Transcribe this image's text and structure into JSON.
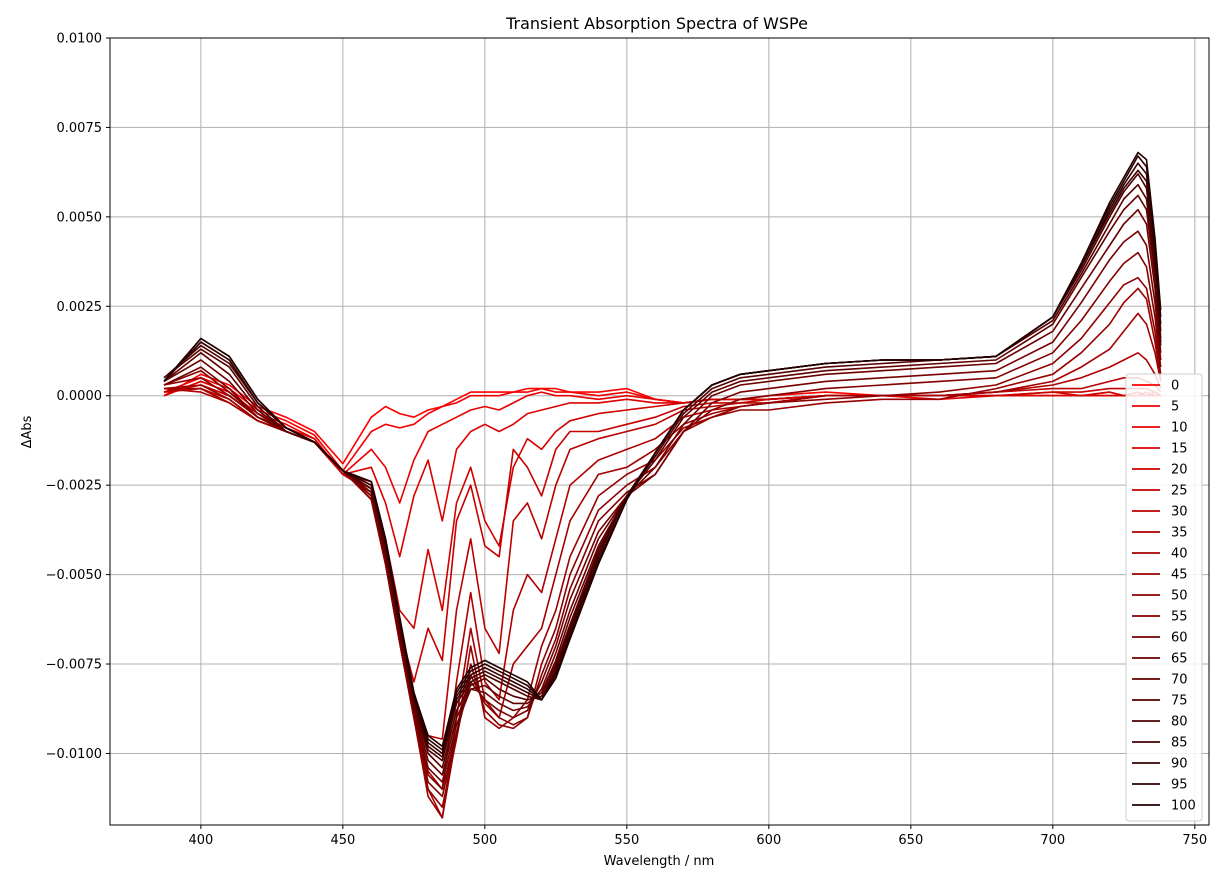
{
  "chart_data": {
    "type": "line",
    "title": "Transient Absorption Spectra of WSPe",
    "xlabel": "Wavelength / nm",
    "ylabel": "ΔAbs",
    "xlim": [
      368,
      755
    ],
    "ylim": [
      -0.012,
      0.01
    ],
    "xticks": [
      400,
      450,
      500,
      550,
      600,
      650,
      700,
      750
    ],
    "yticks": [
      -0.01,
      -0.0075,
      -0.005,
      -0.0025,
      0.0,
      0.0025,
      0.005,
      0.0075,
      0.01
    ],
    "ytick_labels": [
      "−0.0100",
      "−0.0075",
      "−0.0050",
      "−0.0025",
      "0.0000",
      "0.0025",
      "0.0050",
      "0.0075",
      "0.0100"
    ],
    "grid": true,
    "legend_position": "right",
    "x": [
      387,
      400,
      410,
      420,
      430,
      440,
      450,
      460,
      465,
      470,
      475,
      480,
      485,
      490,
      495,
      500,
      505,
      510,
      515,
      520,
      525,
      530,
      540,
      550,
      560,
      570,
      580,
      590,
      600,
      620,
      640,
      660,
      680,
      700,
      710,
      720,
      725,
      730,
      733,
      736,
      738
    ],
    "series": [
      {
        "name": "0",
        "color": "#ff0000",
        "values": [
          0.0,
          0.0006,
          0.0003,
          -0.0003,
          -0.0006,
          -0.001,
          -0.0019,
          -0.0006,
          -0.0003,
          -0.0005,
          -0.0006,
          -0.0004,
          -0.0003,
          -0.0001,
          0.0001,
          0.0001,
          0.0001,
          0.0001,
          0.0002,
          0.0002,
          0.0002,
          0.0001,
          0.0001,
          0.0002,
          -0.0001,
          -0.0002,
          -0.0001,
          -0.0001,
          0.0,
          0.0001,
          0.0,
          0.0,
          0.0,
          0.0,
          0.0,
          0.0,
          0.0,
          0.0001,
          0.0,
          0.0,
          0.0
        ]
      },
      {
        "name": "5",
        "color": "#f30000",
        "values": [
          0.0001,
          0.0005,
          0.0002,
          -0.0004,
          -0.0007,
          -0.0011,
          -0.0021,
          -0.001,
          -0.0008,
          -0.0009,
          -0.0008,
          -0.0005,
          -0.0003,
          -0.0002,
          0.0,
          0.0,
          0.0,
          0.0001,
          0.0001,
          0.0002,
          0.0001,
          0.0001,
          0.0,
          0.0001,
          -0.0001,
          -0.0002,
          -0.0001,
          -0.0001,
          -0.0001,
          0.0,
          0.0,
          0.0,
          0.0,
          0.0,
          0.0,
          0.0001,
          0.0,
          0.0,
          0.0,
          0.0,
          0.0
        ]
      },
      {
        "name": "10",
        "color": "#e80000",
        "values": [
          0.0,
          0.0004,
          0.0001,
          -0.0005,
          -0.0008,
          -0.0012,
          -0.0022,
          -0.0015,
          -0.002,
          -0.003,
          -0.0018,
          -0.001,
          -0.0008,
          -0.0006,
          -0.0004,
          -0.0003,
          -0.0004,
          -0.0002,
          0.0,
          0.0001,
          0.0,
          0.0,
          -0.0001,
          0.0,
          -0.0001,
          -0.0002,
          -0.0001,
          -0.0001,
          -0.0001,
          0.0,
          0.0,
          -0.0001,
          0.0,
          0.0,
          0.0,
          0.0,
          0.0,
          0.0001,
          0.0,
          0.0,
          0.0
        ]
      },
      {
        "name": "15",
        "color": "#dc0000",
        "values": [
          0.0,
          0.0004,
          0.0001,
          -0.0005,
          -0.0009,
          -0.0012,
          -0.0022,
          -0.002,
          -0.003,
          -0.0045,
          -0.0028,
          -0.0018,
          -0.0035,
          -0.0015,
          -0.001,
          -0.0008,
          -0.001,
          -0.0008,
          -0.0005,
          -0.0004,
          -0.0003,
          -0.0002,
          -0.0002,
          -0.0001,
          -0.0002,
          -0.0002,
          -0.0001,
          -0.0001,
          -0.0001,
          0.0,
          0.0,
          0.0,
          0.0,
          0.0,
          0.0,
          0.0,
          0.0,
          0.0,
          0.0001,
          0.0,
          0.0
        ]
      },
      {
        "name": "20",
        "color": "#d10000",
        "values": [
          0.0001,
          0.0003,
          0.0,
          -0.0006,
          -0.0009,
          -0.0013,
          -0.0022,
          -0.0024,
          -0.004,
          -0.006,
          -0.0065,
          -0.0043,
          -0.006,
          -0.003,
          -0.002,
          -0.0035,
          -0.0042,
          -0.002,
          -0.0012,
          -0.0015,
          -0.001,
          -0.0007,
          -0.0005,
          -0.0004,
          -0.0003,
          -0.0002,
          -0.0001,
          -0.0001,
          -0.0001,
          0.0,
          0.0,
          0.0,
          0.0,
          0.0001,
          0.0,
          0.0001,
          0.0,
          0.0001,
          0.0,
          0.0001,
          0.0
        ]
      },
      {
        "name": "25",
        "color": "#c60000",
        "values": [
          0.0001,
          0.0003,
          0.0,
          -0.0006,
          -0.0009,
          -0.0013,
          -0.0022,
          -0.0026,
          -0.0043,
          -0.0065,
          -0.008,
          -0.0065,
          -0.0074,
          -0.0035,
          -0.0025,
          -0.0042,
          -0.0045,
          -0.0015,
          -0.002,
          -0.0028,
          -0.0015,
          -0.001,
          -0.001,
          -0.0008,
          -0.0006,
          -0.0003,
          -0.0002,
          -0.0002,
          -0.0001,
          0.0,
          0.0,
          0.0,
          0.0,
          0.0001,
          0.0001,
          0.0002,
          0.0002,
          0.0002,
          0.0002,
          0.0001,
          0.0
        ]
      },
      {
        "name": "30",
        "color": "#bb0000",
        "values": [
          0.0001,
          0.0002,
          -0.0001,
          -0.0007,
          -0.001,
          -0.0013,
          -0.0022,
          -0.0027,
          -0.0045,
          -0.0067,
          -0.0085,
          -0.0095,
          -0.0096,
          -0.006,
          -0.004,
          -0.0065,
          -0.0072,
          -0.0035,
          -0.003,
          -0.004,
          -0.0025,
          -0.0015,
          -0.0012,
          -0.001,
          -0.0008,
          -0.0004,
          -0.0003,
          -0.0002,
          -0.0002,
          0.0,
          0.0,
          0.0,
          0.0001,
          0.0002,
          0.0002,
          0.0004,
          0.0005,
          0.0005,
          0.0004,
          0.0003,
          0.0001
        ]
      },
      {
        "name": "35",
        "color": "#b00000",
        "values": [
          0.0002,
          0.0001,
          -0.0002,
          -0.0007,
          -0.001,
          -0.0013,
          -0.0021,
          -0.0028,
          -0.0046,
          -0.0068,
          -0.0088,
          -0.0105,
          -0.011,
          -0.008,
          -0.0055,
          -0.008,
          -0.0085,
          -0.006,
          -0.005,
          -0.0055,
          -0.004,
          -0.0025,
          -0.0018,
          -0.0015,
          -0.0012,
          -0.0006,
          -0.0004,
          -0.0003,
          -0.0002,
          0.0,
          0.0,
          0.0,
          0.0001,
          0.0003,
          0.0005,
          0.0008,
          0.001,
          0.0012,
          0.001,
          0.0006,
          0.0002
        ]
      },
      {
        "name": "40",
        "color": "#a40000",
        "values": [
          0.0002,
          0.0002,
          -0.0002,
          -0.0007,
          -0.001,
          -0.0013,
          -0.0021,
          -0.0029,
          -0.0047,
          -0.0069,
          -0.009,
          -0.011,
          -0.0118,
          -0.009,
          -0.0065,
          -0.0085,
          -0.009,
          -0.0075,
          -0.007,
          -0.0065,
          -0.005,
          -0.0035,
          -0.0022,
          -0.002,
          -0.0015,
          -0.0008,
          -0.0005,
          -0.0003,
          -0.0002,
          0.0,
          0.0,
          0.0,
          0.0001,
          0.0004,
          0.0008,
          0.0013,
          0.0018,
          0.0023,
          0.002,
          0.0012,
          0.0004
        ]
      },
      {
        "name": "45",
        "color": "#990000",
        "values": [
          0.0002,
          0.0003,
          -0.0001,
          -0.0007,
          -0.001,
          -0.0013,
          -0.0021,
          -0.0029,
          -0.0047,
          -0.0069,
          -0.009,
          -0.0112,
          -0.0118,
          -0.0095,
          -0.007,
          -0.009,
          -0.0093,
          -0.009,
          -0.0085,
          -0.007,
          -0.006,
          -0.0045,
          -0.0028,
          -0.0022,
          -0.0018,
          -0.0009,
          -0.0006,
          -0.0004,
          -0.0004,
          -0.0002,
          -0.0001,
          -0.0001,
          0.0002,
          0.0006,
          0.0012,
          0.002,
          0.0026,
          0.003,
          0.0027,
          0.0015,
          0.0005
        ]
      },
      {
        "name": "50",
        "color": "#8e0000",
        "values": [
          0.0003,
          0.0005,
          0.0,
          -0.0006,
          -0.001,
          -0.0013,
          -0.0021,
          -0.0029,
          -0.0047,
          -0.0069,
          -0.009,
          -0.011,
          -0.0115,
          -0.0096,
          -0.0075,
          -0.0088,
          -0.0092,
          -0.0093,
          -0.009,
          -0.0075,
          -0.0065,
          -0.005,
          -0.0032,
          -0.0025,
          -0.002,
          -0.001,
          -0.0006,
          -0.0003,
          -0.0002,
          -0.0001,
          0.0,
          0.0001,
          0.0003,
          0.0009,
          0.0016,
          0.0026,
          0.0031,
          0.0033,
          0.003,
          0.0018,
          0.0006
        ]
      },
      {
        "name": "55",
        "color": "#830000",
        "values": [
          0.0003,
          0.0007,
          0.0001,
          -0.0006,
          -0.001,
          -0.0013,
          -0.0021,
          -0.0028,
          -0.0046,
          -0.0068,
          -0.0089,
          -0.0108,
          -0.0112,
          -0.0095,
          -0.0078,
          -0.0086,
          -0.009,
          -0.0092,
          -0.009,
          -0.0078,
          -0.0068,
          -0.0054,
          -0.0035,
          -0.0027,
          -0.0022,
          -0.001,
          -0.0004,
          -0.0001,
          0.0,
          0.0002,
          0.0003,
          0.0004,
          0.0005,
          0.0012,
          0.0021,
          0.0032,
          0.0037,
          0.004,
          0.0036,
          0.0022,
          0.0008
        ]
      },
      {
        "name": "60",
        "color": "#780000",
        "values": [
          0.0003,
          0.0008,
          0.0002,
          -0.0006,
          -0.001,
          -0.0013,
          -0.0021,
          -0.0028,
          -0.0046,
          -0.0068,
          -0.0089,
          -0.0106,
          -0.011,
          -0.0094,
          -0.008,
          -0.0085,
          -0.0088,
          -0.009,
          -0.0088,
          -0.008,
          -0.007,
          -0.0057,
          -0.0038,
          -0.0028,
          -0.0022,
          -0.001,
          -0.0002,
          0.0001,
          0.0002,
          0.0004,
          0.0005,
          0.0006,
          0.0007,
          0.0015,
          0.0026,
          0.0038,
          0.0043,
          0.0046,
          0.0042,
          0.0026,
          0.001
        ]
      },
      {
        "name": "65",
        "color": "#6d0000",
        "values": [
          0.0004,
          0.001,
          0.0004,
          -0.0005,
          -0.001,
          -0.0013,
          -0.0021,
          -0.0027,
          -0.0045,
          -0.0067,
          -0.0088,
          -0.0104,
          -0.0108,
          -0.0092,
          -0.0082,
          -0.0083,
          -0.0086,
          -0.0088,
          -0.0087,
          -0.0082,
          -0.0072,
          -0.006,
          -0.004,
          -0.0028,
          -0.002,
          -0.0008,
          0.0,
          0.0003,
          0.0004,
          0.0006,
          0.0007,
          0.0008,
          0.0009,
          0.0018,
          0.003,
          0.0042,
          0.0048,
          0.0052,
          0.0048,
          0.003,
          0.0012
        ]
      },
      {
        "name": "70",
        "color": "#620000",
        "values": [
          0.0004,
          0.0012,
          0.0006,
          -0.0004,
          -0.001,
          -0.0013,
          -0.0021,
          -0.0026,
          -0.0044,
          -0.0066,
          -0.0087,
          -0.0102,
          -0.0106,
          -0.009,
          -0.0082,
          -0.0081,
          -0.0084,
          -0.0086,
          -0.0086,
          -0.0083,
          -0.0074,
          -0.0062,
          -0.0042,
          -0.0028,
          -0.0018,
          -0.0006,
          0.0001,
          0.0004,
          0.0005,
          0.0007,
          0.0008,
          0.0009,
          0.001,
          0.002,
          0.0033,
          0.0046,
          0.0052,
          0.0056,
          0.0052,
          0.0033,
          0.0014
        ]
      },
      {
        "name": "75",
        "color": "#570000",
        "values": [
          0.0005,
          0.0013,
          0.0008,
          -0.0003,
          -0.001,
          -0.0013,
          -0.0021,
          -0.0026,
          -0.0043,
          -0.0065,
          -0.0086,
          -0.01,
          -0.0104,
          -0.0088,
          -0.0081,
          -0.0079,
          -0.0082,
          -0.0084,
          -0.0085,
          -0.0084,
          -0.0075,
          -0.0064,
          -0.0043,
          -0.0028,
          -0.0017,
          -0.0005,
          0.0002,
          0.0005,
          0.0006,
          0.0008,
          0.0009,
          0.001,
          0.0011,
          0.0021,
          0.0034,
          0.0048,
          0.0055,
          0.0059,
          0.0055,
          0.0035,
          0.0015
        ]
      },
      {
        "name": "80",
        "color": "#4c0000",
        "values": [
          0.0005,
          0.0014,
          0.0009,
          -0.0002,
          -0.0009,
          -0.0013,
          -0.0021,
          -0.0025,
          -0.0042,
          -0.0064,
          -0.0085,
          -0.0099,
          -0.0102,
          -0.0086,
          -0.008,
          -0.0078,
          -0.008,
          -0.0082,
          -0.0084,
          -0.0085,
          -0.0076,
          -0.0065,
          -0.0044,
          -0.0028,
          -0.0016,
          -0.0004,
          0.0003,
          0.0006,
          0.0007,
          0.0009,
          0.001,
          0.001,
          0.0011,
          0.0022,
          0.0035,
          0.005,
          0.0057,
          0.0062,
          0.0058,
          0.0037,
          0.0016
        ]
      },
      {
        "name": "85",
        "color": "#400000",
        "values": [
          0.0004,
          0.0015,
          0.001,
          -0.0002,
          -0.0009,
          -0.0013,
          -0.0021,
          -0.0025,
          -0.0041,
          -0.0063,
          -0.0084,
          -0.0098,
          -0.0101,
          -0.0085,
          -0.0079,
          -0.0077,
          -0.0079,
          -0.0081,
          -0.0083,
          -0.0085,
          -0.0077,
          -0.0066,
          -0.0045,
          -0.0028,
          -0.0016,
          -0.0004,
          0.0003,
          0.0006,
          0.0007,
          0.0009,
          0.001,
          0.001,
          0.0011,
          0.0022,
          0.0036,
          0.0051,
          0.0058,
          0.0063,
          0.006,
          0.0039,
          0.0018
        ]
      },
      {
        "name": "90",
        "color": "#350000",
        "values": [
          0.0004,
          0.0015,
          0.001,
          -0.0002,
          -0.0009,
          -0.0013,
          -0.0021,
          -0.0025,
          -0.0041,
          -0.0063,
          -0.0084,
          -0.0097,
          -0.01,
          -0.0084,
          -0.0078,
          -0.0076,
          -0.0078,
          -0.008,
          -0.0082,
          -0.0085,
          -0.0078,
          -0.0067,
          -0.0046,
          -0.0029,
          -0.0016,
          -0.0004,
          0.0003,
          0.0006,
          0.0007,
          0.0009,
          0.001,
          0.001,
          0.0011,
          0.0022,
          0.0036,
          0.0052,
          0.0059,
          0.0065,
          0.0062,
          0.004,
          0.002
        ]
      },
      {
        "name": "95",
        "color": "#2b0000",
        "values": [
          0.0004,
          0.0016,
          0.0011,
          -0.0001,
          -0.0009,
          -0.0013,
          -0.0021,
          -0.0024,
          -0.004,
          -0.0062,
          -0.0083,
          -0.0096,
          -0.0099,
          -0.0083,
          -0.0077,
          -0.0075,
          -0.0077,
          -0.0079,
          -0.0081,
          -0.0085,
          -0.0078,
          -0.0068,
          -0.0047,
          -0.0029,
          -0.0016,
          -0.0004,
          0.0003,
          0.0006,
          0.0007,
          0.0009,
          0.001,
          0.001,
          0.0011,
          0.0022,
          0.0037,
          0.0053,
          0.006,
          0.0067,
          0.0064,
          0.0042,
          0.0022
        ]
      },
      {
        "name": "100",
        "color": "#200000",
        "values": [
          0.0004,
          0.0016,
          0.0011,
          -0.0001,
          -0.0009,
          -0.0013,
          -0.0021,
          -0.0024,
          -0.004,
          -0.0062,
          -0.0083,
          -0.0095,
          -0.0098,
          -0.0082,
          -0.0076,
          -0.0074,
          -0.0076,
          -0.0078,
          -0.008,
          -0.0085,
          -0.0079,
          -0.0068,
          -0.0047,
          -0.0029,
          -0.0016,
          -0.0004,
          0.0003,
          0.0006,
          0.0007,
          0.0009,
          0.001,
          0.001,
          0.0011,
          0.0022,
          0.0037,
          0.0054,
          0.0061,
          0.0068,
          0.0066,
          0.0044,
          0.0024
        ]
      }
    ]
  }
}
